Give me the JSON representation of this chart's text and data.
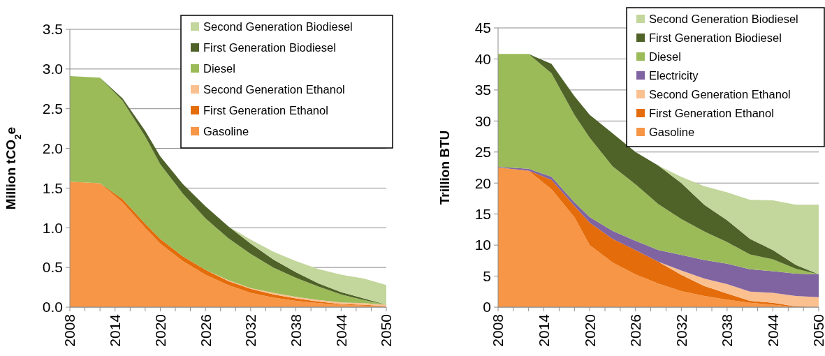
{
  "chart_data": [
    {
      "type": "area",
      "stacked": true,
      "ylabel": "Million tCO$_{2}$e",
      "x": [
        2008,
        2012,
        2015,
        2018,
        2020,
        2023,
        2026,
        2029,
        2032,
        2035,
        2038,
        2041,
        2044,
        2047,
        2050
      ],
      "xlim": [
        2008,
        2050
      ],
      "xticks": [
        2008,
        {
          "value": 2010,
          "label": null
        },
        {
          "value": 2012,
          "label": null
        },
        2014,
        {
          "value": 2016,
          "label": null
        },
        {
          "value": 2018,
          "label": null
        },
        2020,
        {
          "value": 2022,
          "label": null
        },
        {
          "value": 2024,
          "label": null
        },
        2026,
        {
          "value": 2028,
          "label": null
        },
        {
          "value": 2030,
          "label": null
        },
        2032,
        {
          "value": 2034,
          "label": null
        },
        {
          "value": 2036,
          "label": null
        },
        2038,
        {
          "value": 2040,
          "label": null
        },
        {
          "value": 2042,
          "label": null
        },
        2044,
        {
          "value": 2046,
          "label": null
        },
        {
          "value": 2048,
          "label": null
        },
        2050
      ],
      "ylim": [
        0,
        3.5
      ],
      "yticks": [
        {
          "value": 0,
          "label": "0.0"
        },
        0.5,
        {
          "value": 1,
          "label": "1.0"
        },
        1.5,
        {
          "value": 2,
          "label": "2.0"
        },
        2.5,
        {
          "value": 3,
          "label": "3.0"
        },
        3.5
      ],
      "grid": "y",
      "legend": "top right",
      "series": [
        {
          "name": "Gasoline",
          "color": "#f79646",
          "values": [
            1.58,
            1.56,
            1.32,
            1.0,
            0.8,
            0.58,
            0.41,
            0.28,
            0.18,
            0.12,
            0.08,
            0.05,
            0.03,
            0.02,
            0.01
          ]
        },
        {
          "name": "First Generation Ethanol",
          "color": "#e46c0a",
          "values": [
            null,
            0,
            0.04,
            0.05,
            0.06,
            0.06,
            0.06,
            0.05,
            0.05,
            0.04,
            0.03,
            0.02,
            0.01,
            0.01,
            0
          ]
        },
        {
          "name": "Second Generation Ethanol",
          "color": "#fac090",
          "values": [
            null,
            null,
            null,
            null,
            null,
            null,
            0,
            0.01,
            0.01,
            0.02,
            0.02,
            0.02,
            0.02,
            0.02,
            0.02
          ]
        },
        {
          "name": "Diesel",
          "color": "#9bbb59",
          "values": [
            1.33,
            1.33,
            1.24,
            1.1,
            0.94,
            0.79,
            0.65,
            0.53,
            0.43,
            0.32,
            0.24,
            0.17,
            0.1,
            0.04,
            0
          ]
        },
        {
          "name": "First Generation Biodiesel",
          "color": "#4f6228",
          "values": [
            null,
            0,
            0.03,
            0.07,
            0.1,
            0.12,
            0.15,
            0.15,
            0.13,
            0.1,
            0.07,
            0.04,
            0.03,
            0.02,
            0
          ]
        },
        {
          "name": "Second Generation Biodiesel",
          "color": "#c3d69b",
          "values": [
            null,
            null,
            null,
            null,
            null,
            null,
            null,
            0,
            0.05,
            0.1,
            0.14,
            0.18,
            0.22,
            0.25,
            0.25
          ]
        }
      ]
    },
    {
      "type": "area",
      "stacked": true,
      "ylabel": "Trillion BTU",
      "x": [
        2008,
        2012,
        2015,
        2018,
        2020,
        2023,
        2026,
        2029,
        2032,
        2035,
        2038,
        2041,
        2044,
        2047,
        2050
      ],
      "xlim": [
        2008,
        2050
      ],
      "xticks": [
        2008,
        {
          "value": 2010,
          "label": null
        },
        {
          "value": 2012,
          "label": null
        },
        2014,
        {
          "value": 2016,
          "label": null
        },
        {
          "value": 2018,
          "label": null
        },
        2020,
        {
          "value": 2022,
          "label": null
        },
        {
          "value": 2024,
          "label": null
        },
        2026,
        {
          "value": 2028,
          "label": null
        },
        {
          "value": 2030,
          "label": null
        },
        2032,
        {
          "value": 2034,
          "label": null
        },
        {
          "value": 2036,
          "label": null
        },
        2038,
        {
          "value": 2040,
          "label": null
        },
        {
          "value": 2042,
          "label": null
        },
        2044,
        {
          "value": 2046,
          "label": null
        },
        {
          "value": 2048,
          "label": null
        },
        2050
      ],
      "ylim": [
        0,
        45
      ],
      "yticks": [
        0,
        5,
        10,
        15,
        20,
        25,
        30,
        35,
        40,
        45
      ],
      "grid": "y",
      "legend": "top right",
      "series": [
        {
          "name": "Gasoline",
          "color": "#f79646",
          "values": [
            22.5,
            22.0,
            19.0,
            14.5,
            10.0,
            7.2,
            5.3,
            3.8,
            2.6,
            1.8,
            1.2,
            0.7,
            0.4,
            0,
            null
          ]
        },
        {
          "name": "First Generation Ethanol",
          "color": "#e46c0a",
          "values": [
            null,
            0,
            1.5,
            1.8,
            3.6,
            3.8,
            3.9,
            3.5,
            2.6,
            1.6,
            1.0,
            0.3,
            0.3,
            0.1,
            0
          ]
        },
        {
          "name": "Second Generation Ethanol",
          "color": "#fac090",
          "values": [
            null,
            null,
            null,
            null,
            null,
            null,
            null,
            0,
            0.7,
            1.2,
            1.5,
            1.5,
            1.6,
            1.7,
            1.6
          ]
        },
        {
          "name": "Electricity",
          "color": "#8064a2",
          "values": [
            0.1,
            0.3,
            0.5,
            0.6,
            0.9,
            1.3,
            1.5,
            1.9,
            2.5,
            3.0,
            3.3,
            3.6,
            3.5,
            3.6,
            3.7
          ]
        },
        {
          "name": "Diesel",
          "color": "#9bbb59",
          "values": [
            18.2,
            18.5,
            16.7,
            14.1,
            12.8,
            10.4,
            9.1,
            7.4,
            5.8,
            4.6,
            3.5,
            2.4,
            1.9,
            0.8,
            0
          ]
        },
        {
          "name": "First Generation Biodiesel",
          "color": "#4f6228",
          "values": [
            null,
            0,
            1.5,
            3.0,
            3.7,
            5.3,
            5.2,
            6.2,
            5.8,
            4.3,
            3.5,
            2.5,
            1.5,
            0.6,
            0
          ]
        },
        {
          "name": "Second Generation Biodiesel",
          "color": "#c3d69b",
          "values": [
            null,
            null,
            null,
            null,
            null,
            null,
            null,
            0,
            1.0,
            3.0,
            4.5,
            6.3,
            8.0,
            9.7,
            11.2
          ]
        }
      ]
    }
  ]
}
